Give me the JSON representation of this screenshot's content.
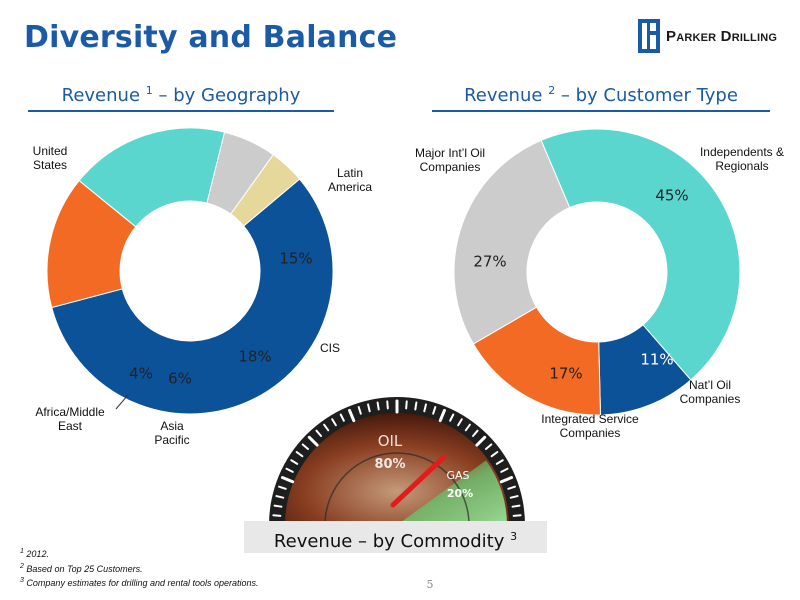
{
  "title": "Diversity and Balance",
  "logo": {
    "text": "Parker Drilling"
  },
  "footnotes": [
    {
      "mark": "1",
      "text": "2012."
    },
    {
      "mark": "2",
      "text": "Based on Top 25 Customers."
    },
    {
      "mark": "3",
      "text": "Company estimates for drilling and rental tools operations."
    }
  ],
  "page_number": "5",
  "colors": {
    "title_blue": "#1a5aa6",
    "navy": "#0b5299",
    "orange": "#f26a24",
    "teal": "#5bd6cf",
    "gray": "#cccccc",
    "tan": "#e6d79a"
  },
  "chart_data": [
    {
      "type": "pie",
      "title_prefix": "Revenue ",
      "title_sup": "1",
      "title_suffix": " – by Geography",
      "slices": [
        {
          "label": "United States",
          "lines": [
            "United",
            "States"
          ],
          "value": 57,
          "display": "57%",
          "color": "#0b5299"
        },
        {
          "label": "Latin America",
          "lines": [
            "Latin",
            "America"
          ],
          "value": 15,
          "display": "15%",
          "color": "#f26a24"
        },
        {
          "label": "CIS",
          "lines": [
            "CIS"
          ],
          "value": 18,
          "display": "18%",
          "color": "#5bd6cf"
        },
        {
          "label": "Asia Pacific",
          "lines": [
            "Asia",
            "Pacific"
          ],
          "value": 6,
          "display": "6%",
          "color": "#cccccc"
        },
        {
          "label": "Africa/Middle East",
          "lines": [
            "Africa/Middle",
            "East"
          ],
          "value": 4,
          "display": "4%",
          "color": "#e6d79a"
        }
      ]
    },
    {
      "type": "pie",
      "title_prefix": "Revenue ",
      "title_sup": "2",
      "title_suffix": " – by Customer Type",
      "slices": [
        {
          "label": "Independents & Regionals",
          "lines": [
            "Independents &",
            "Regionals"
          ],
          "value": 45,
          "display": "45%",
          "color": "#5bd6cf"
        },
        {
          "label": "Nat'l Oil Companies",
          "lines": [
            "Nat’l Oil",
            "Companies"
          ],
          "value": 11,
          "display": "11%",
          "color": "#0b5299"
        },
        {
          "label": "Integrated Service Companies",
          "lines": [
            "Integrated Service",
            "Companies"
          ],
          "value": 17,
          "display": "17%",
          "color": "#f26a24"
        },
        {
          "label": "Major Int'l Oil Companies",
          "lines": [
            "Major Int’l Oil",
            "Companies"
          ],
          "value": 27,
          "display": "27%",
          "color": "#cccccc"
        }
      ]
    },
    {
      "type": "gauge",
      "title_prefix": "Revenue – by Commodity ",
      "title_sup": "3",
      "segments": [
        {
          "label": "OIL",
          "value": 80,
          "display": "80%"
        },
        {
          "label": "GAS",
          "value": 20,
          "display": "20%"
        }
      ]
    }
  ]
}
